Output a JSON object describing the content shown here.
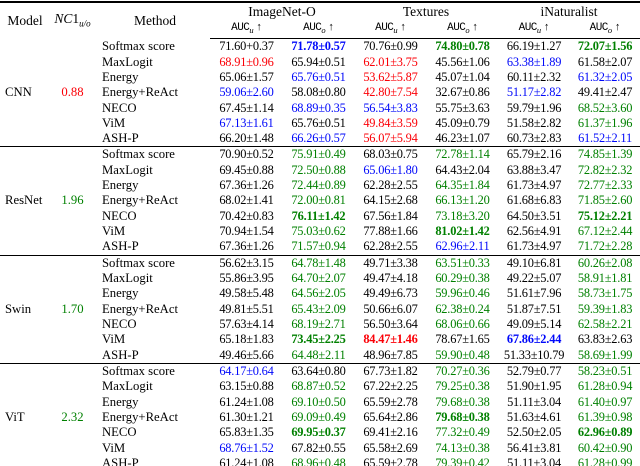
{
  "colors": {
    "black": "#000000",
    "red": "#fb0007",
    "green": "#008000",
    "blue": "#0008fa"
  },
  "header": {
    "model": "Model",
    "nc1_prefix": "NC",
    "nc1_digit": "1",
    "nc1_sub": "u/o",
    "method": "Method",
    "groups": [
      "ImageNet-O",
      "Textures",
      "iNaturalist"
    ],
    "auc_label": "AUC",
    "sub_u": "u",
    "sub_o": "o",
    "arrow": "↑"
  },
  "blocks": [
    {
      "model": "CNN",
      "nc1": "0.88",
      "nc1_color": "red",
      "rows": [
        {
          "method": "Softmax score",
          "cells": [
            [
              "71.60+0.37",
              "black",
              0
            ],
            [
              "71.78±0.57",
              "blue",
              1
            ],
            [
              "70.76±0.99",
              "black",
              0
            ],
            [
              "74.80±0.78",
              "green",
              1
            ],
            [
              "66.19±1.27",
              "black",
              0
            ],
            [
              "72.07±1.56",
              "green",
              1
            ]
          ]
        },
        {
          "method": "MaxLogit",
          "cells": [
            [
              "68.91±0.96",
              "red",
              0
            ],
            [
              "65.94±0.51",
              "black",
              0
            ],
            [
              "62.01±3.75",
              "red",
              0
            ],
            [
              "45.56±1.06",
              "black",
              0
            ],
            [
              "63.38±1.89",
              "blue",
              0
            ],
            [
              "61.58±2.07",
              "black",
              0
            ]
          ]
        },
        {
          "method": "Energy",
          "cells": [
            [
              "65.06±1.57",
              "black",
              0
            ],
            [
              "65.76±0.51",
              "blue",
              0
            ],
            [
              "53.62±5.87",
              "red",
              0
            ],
            [
              "45.07±1.04",
              "black",
              0
            ],
            [
              "60.11±2.32",
              "black",
              0
            ],
            [
              "61.32±2.05",
              "blue",
              0
            ]
          ]
        },
        {
          "method": "Energy+ReAct",
          "cells": [
            [
              "59.06±2.60",
              "blue",
              0
            ],
            [
              "58.08±0.80",
              "black",
              0
            ],
            [
              "42.80±7.54",
              "red",
              0
            ],
            [
              "32.67±0.86",
              "black",
              0
            ],
            [
              "51.17±2.82",
              "blue",
              0
            ],
            [
              "49.41±2.47",
              "black",
              0
            ]
          ]
        },
        {
          "method": "NECO",
          "cells": [
            [
              "67.45±1.14",
              "black",
              0
            ],
            [
              "68.89±0.35",
              "blue",
              0
            ],
            [
              "56.54±3.83",
              "blue",
              0
            ],
            [
              "55.75±3.63",
              "black",
              0
            ],
            [
              "59.79±1.96",
              "black",
              0
            ],
            [
              "68.52±3.60",
              "green",
              0
            ]
          ]
        },
        {
          "method": "ViM",
          "cells": [
            [
              "67.13±1.61",
              "blue",
              0
            ],
            [
              "65.76±0.51",
              "black",
              0
            ],
            [
              "49.84±3.59",
              "red",
              0
            ],
            [
              "45.09±0.79",
              "black",
              0
            ],
            [
              "51.58±2.82",
              "black",
              0
            ],
            [
              "61.37±1.96",
              "green",
              0
            ]
          ]
        },
        {
          "method": "ASH-P",
          "cells": [
            [
              "66.20±1.48",
              "black",
              0
            ],
            [
              "66.26±0.57",
              "blue",
              0
            ],
            [
              "56.07±5.94",
              "red",
              0
            ],
            [
              "46.23±1.07",
              "black",
              0
            ],
            [
              "60.73±2.83",
              "black",
              0
            ],
            [
              "61.52±2.11",
              "blue",
              0
            ]
          ]
        }
      ]
    },
    {
      "model": "ResNet",
      "nc1": "1.96",
      "nc1_color": "green",
      "rows": [
        {
          "method": "Softmax score",
          "cells": [
            [
              "70.90±0.52",
              "black",
              0
            ],
            [
              "75.91±0.49",
              "green",
              0
            ],
            [
              "68.03±0.75",
              "black",
              0
            ],
            [
              "72.78±1.14",
              "green",
              0
            ],
            [
              "65.79±2.16",
              "black",
              0
            ],
            [
              "74.85±1.39",
              "green",
              0
            ]
          ]
        },
        {
          "method": "MaxLogit",
          "cells": [
            [
              "69.45±0.88",
              "black",
              0
            ],
            [
              "72.50±0.88",
              "green",
              0
            ],
            [
              "65.06±1.80",
              "blue",
              0
            ],
            [
              "64.43±2.04",
              "black",
              0
            ],
            [
              "63.88±3.47",
              "black",
              0
            ],
            [
              "72.82±2.32",
              "green",
              0
            ]
          ]
        },
        {
          "method": "Energy",
          "cells": [
            [
              "67.36±1.26",
              "black",
              0
            ],
            [
              "72.44±0.89",
              "green",
              0
            ],
            [
              "62.28±2.55",
              "black",
              0
            ],
            [
              "64.35±1.84",
              "green",
              0
            ],
            [
              "61.73±4.97",
              "black",
              0
            ],
            [
              "72.77±2.33",
              "green",
              0
            ]
          ]
        },
        {
          "method": "Energy+ReAct",
          "cells": [
            [
              "68.02±1.41",
              "black",
              0
            ],
            [
              "72.00±0.81",
              "green",
              0
            ],
            [
              "64.15±2.68",
              "black",
              0
            ],
            [
              "66.13±1.20",
              "green",
              0
            ],
            [
              "61.68±6.83",
              "black",
              0
            ],
            [
              "71.85±2.60",
              "green",
              0
            ]
          ]
        },
        {
          "method": "NECO",
          "cells": [
            [
              "70.42±0.83",
              "black",
              0
            ],
            [
              "76.11±1.42",
              "green",
              1
            ],
            [
              "67.56±1.84",
              "black",
              0
            ],
            [
              "73.18±3.20",
              "green",
              0
            ],
            [
              "64.50±3.51",
              "black",
              0
            ],
            [
              "75.12±2.21",
              "green",
              1
            ]
          ]
        },
        {
          "method": "ViM",
          "cells": [
            [
              "70.94±1.54",
              "black",
              0
            ],
            [
              "75.03±0.62",
              "green",
              0
            ],
            [
              "77.88±1.66",
              "black",
              0
            ],
            [
              "81.02±1.42",
              "green",
              1
            ],
            [
              "62.56±4.91",
              "black",
              0
            ],
            [
              "67.12±2.44",
              "green",
              0
            ]
          ]
        },
        {
          "method": "ASH-P",
          "cells": [
            [
              "67.36±1.26",
              "black",
              0
            ],
            [
              "71.57±0.94",
              "green",
              0
            ],
            [
              "62.28±2.55",
              "black",
              0
            ],
            [
              "62.96±2.11",
              "blue",
              0
            ],
            [
              "61.73±4.97",
              "black",
              0
            ],
            [
              "71.72±2.28",
              "green",
              0
            ]
          ]
        }
      ]
    },
    {
      "model": "Swin",
      "nc1": "1.70",
      "nc1_color": "green",
      "rows": [
        {
          "method": "Softmax score",
          "cells": [
            [
              "56.62±3.15",
              "black",
              0
            ],
            [
              "64.78±1.48",
              "green",
              0
            ],
            [
              "49.71±3.38",
              "black",
              0
            ],
            [
              "63.51±0.33",
              "green",
              0
            ],
            [
              "49.10±6.81",
              "black",
              0
            ],
            [
              "60.26±2.08",
              "green",
              0
            ]
          ]
        },
        {
          "method": "MaxLogit",
          "cells": [
            [
              "55.86±3.95",
              "black",
              0
            ],
            [
              "64.70±2.07",
              "green",
              0
            ],
            [
              "49.47±4.18",
              "black",
              0
            ],
            [
              "60.29±0.38",
              "green",
              0
            ],
            [
              "49.22±5.07",
              "black",
              0
            ],
            [
              "58.91±1.81",
              "green",
              0
            ]
          ]
        },
        {
          "method": "Energy",
          "cells": [
            [
              "49.58±5.48",
              "black",
              0
            ],
            [
              "64.56±2.05",
              "green",
              0
            ],
            [
              "49.49±6.73",
              "black",
              0
            ],
            [
              "59.96±0.46",
              "green",
              0
            ],
            [
              "51.61±7.96",
              "black",
              0
            ],
            [
              "58.73±1.75",
              "green",
              0
            ]
          ]
        },
        {
          "method": "Energy+ReAct",
          "cells": [
            [
              "49.81±5.51",
              "black",
              0
            ],
            [
              "65.43±2.09",
              "green",
              0
            ],
            [
              "50.66±6.07",
              "black",
              0
            ],
            [
              "62.38±0.24",
              "green",
              0
            ],
            [
              "51.87±7.51",
              "black",
              0
            ],
            [
              "59.39±1.83",
              "green",
              0
            ]
          ]
        },
        {
          "method": "NECO",
          "cells": [
            [
              "57.63±4.14",
              "black",
              0
            ],
            [
              "68.19±2.71",
              "green",
              0
            ],
            [
              "56.50±3.64",
              "black",
              0
            ],
            [
              "68.06±0.66",
              "green",
              0
            ],
            [
              "49.09±5.14",
              "black",
              0
            ],
            [
              "62.58±2.21",
              "green",
              0
            ]
          ]
        },
        {
          "method": "ViM",
          "cells": [
            [
              "65.18±1.83",
              "black",
              0
            ],
            [
              "73.45±2.25",
              "green",
              1
            ],
            [
              "84.47±1.46",
              "red",
              1
            ],
            [
              "78.67±1.65",
              "black",
              0
            ],
            [
              "67.86±2.44",
              "blue",
              1
            ],
            [
              "63.83±2.63",
              "black",
              0
            ]
          ]
        },
        {
          "method": "ASH-P",
          "cells": [
            [
              "49.46±5.66",
              "black",
              0
            ],
            [
              "64.48±2.11",
              "green",
              0
            ],
            [
              "48.96±7.85",
              "black",
              0
            ],
            [
              "59.90±0.48",
              "green",
              0
            ],
            [
              "51.33±10.79",
              "black",
              0
            ],
            [
              "58.69±1.99",
              "green",
              0
            ]
          ]
        }
      ]
    },
    {
      "model": "ViT",
      "nc1": "2.32",
      "nc1_color": "green",
      "rows": [
        {
          "method": "Softmax score",
          "cells": [
            [
              "64.17±0.64",
              "blue",
              0
            ],
            [
              "63.64±0.80",
              "black",
              0
            ],
            [
              "67.73±1.82",
              "black",
              0
            ],
            [
              "70.27±0.36",
              "green",
              0
            ],
            [
              "52.79±0.77",
              "black",
              0
            ],
            [
              "58.23±0.51",
              "green",
              0
            ]
          ]
        },
        {
          "method": "MaxLogit",
          "cells": [
            [
              "63.15±0.88",
              "black",
              0
            ],
            [
              "68.87±0.52",
              "green",
              0
            ],
            [
              "67.22±2.25",
              "black",
              0
            ],
            [
              "79.25±0.38",
              "green",
              0
            ],
            [
              "51.90±1.95",
              "black",
              0
            ],
            [
              "61.28±0.94",
              "green",
              0
            ]
          ]
        },
        {
          "method": "Energy",
          "cells": [
            [
              "61.24±1.08",
              "black",
              0
            ],
            [
              "69.10±0.50",
              "green",
              0
            ],
            [
              "65.59±2.78",
              "black",
              0
            ],
            [
              "79.68±0.38",
              "green",
              0
            ],
            [
              "51.11±3.04",
              "black",
              0
            ],
            [
              "61.40±0.97",
              "green",
              0
            ]
          ]
        },
        {
          "method": "Energy+ReAct",
          "cells": [
            [
              "61.30±1.21",
              "black",
              0
            ],
            [
              "69.09±0.49",
              "green",
              0
            ],
            [
              "65.64±2.86",
              "black",
              0
            ],
            [
              "79.68±0.38",
              "green",
              1
            ],
            [
              "51.63±4.61",
              "black",
              0
            ],
            [
              "61.39±0.98",
              "green",
              0
            ]
          ]
        },
        {
          "method": "NECO",
          "cells": [
            [
              "65.83±1.35",
              "black",
              0
            ],
            [
              "69.95±0.37",
              "green",
              1
            ],
            [
              "69.41±2.16",
              "black",
              0
            ],
            [
              "77.32±0.49",
              "green",
              0
            ],
            [
              "52.50±2.05",
              "black",
              0
            ],
            [
              "62.96±0.89",
              "green",
              1
            ]
          ]
        },
        {
          "method": "ViM",
          "cells": [
            [
              "68.76±1.52",
              "blue",
              0
            ],
            [
              "67.82±0.55",
              "black",
              0
            ],
            [
              "65.58±2.69",
              "black",
              0
            ],
            [
              "74.13±0.38",
              "green",
              0
            ],
            [
              "56.41±3.81",
              "black",
              0
            ],
            [
              "60.42±0.90",
              "green",
              0
            ]
          ]
        },
        {
          "method": "ASH-P",
          "cells": [
            [
              "61.24±1.08",
              "black",
              0
            ],
            [
              "68.96±0.48",
              "green",
              0
            ],
            [
              "65.59±2.78",
              "black",
              0
            ],
            [
              "79.39±0.42",
              "green",
              0
            ],
            [
              "51.11±3.04",
              "black",
              0
            ],
            [
              "61.28±0.99",
              "green",
              0
            ]
          ]
        }
      ]
    }
  ]
}
